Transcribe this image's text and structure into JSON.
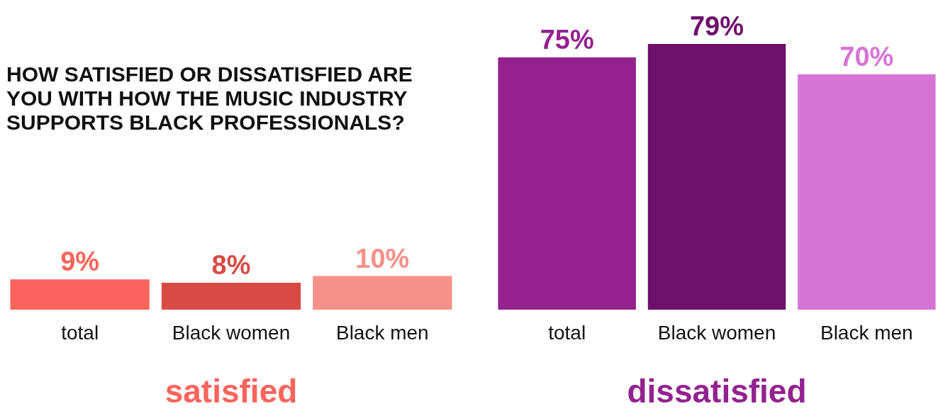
{
  "chart_data": [
    {
      "type": "bar",
      "title": "HOW SATISFIED OR DISSATISFIED ARE YOU WITH HOW THE MUSIC INDUSTRY SUPPORTS BLACK PROFESSIONALS?",
      "xlabel": "satisfied",
      "categories": [
        "total",
        "Black women",
        "Black men"
      ],
      "values": [
        9,
        8,
        10
      ],
      "colors": [
        "#fb645c",
        "#d84b45",
        "#f69189"
      ],
      "value_labels": [
        "9%",
        "8%",
        "10%"
      ]
    },
    {
      "type": "bar",
      "xlabel": "dissatisfied",
      "categories": [
        "total",
        "Black women",
        "Black men"
      ],
      "values": [
        75,
        79,
        70
      ],
      "colors": [
        "#93228f",
        "#6e0f6b",
        "#d674d6"
      ],
      "value_labels": [
        "75%",
        "79%",
        "70%"
      ]
    }
  ]
}
